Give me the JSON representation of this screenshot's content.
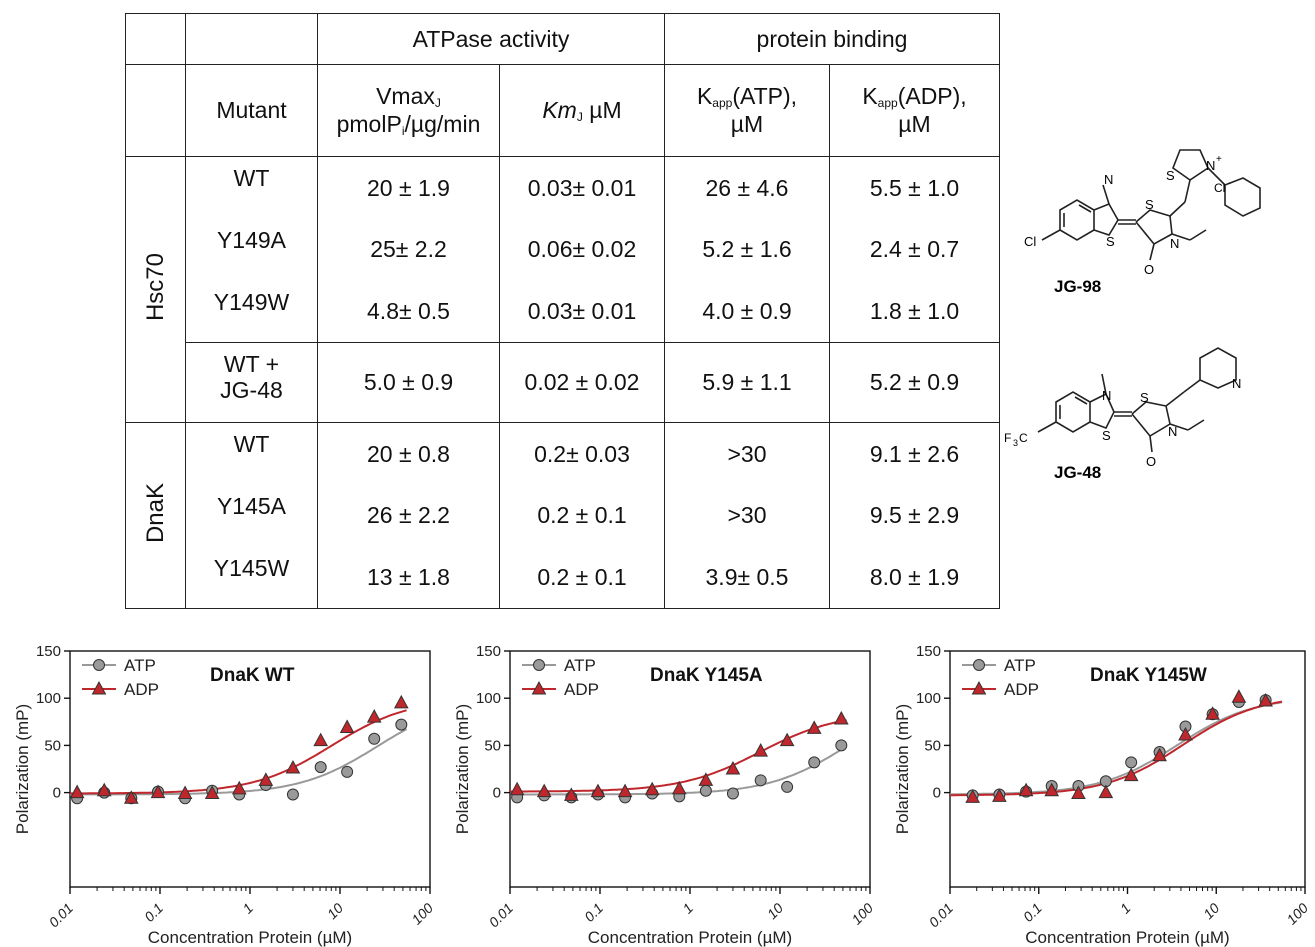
{
  "table": {
    "group_headers": [
      "ATPase activity",
      "protein binding"
    ],
    "col_headers": {
      "mutant": "Mutant",
      "vmax": [
        "Vmax",
        "J",
        "pmolP",
        "i",
        "/µg/min"
      ],
      "km": [
        "Km",
        "J",
        " µM"
      ],
      "kapp_atp": [
        "K",
        "app",
        "(ATP),",
        "µM"
      ],
      "kapp_adp": [
        "K",
        "app",
        "(ADP),",
        "µM"
      ]
    },
    "groups": [
      {
        "name": "Hsc70",
        "rows": [
          {
            "mutant": "WT",
            "vmax": "20 ± 1.9",
            "km": "0.03± 0.01",
            "kapp_atp": "26 ± 4.6",
            "kapp_adp": "5.5 ± 1.0"
          },
          {
            "mutant": "Y149A",
            "vmax": "25± 2.2",
            "km": "0.06± 0.02",
            "kapp_atp": "5.2 ± 1.6",
            "kapp_adp": "2.4 ± 0.7"
          },
          {
            "mutant": "Y149W",
            "vmax": "4.8± 0.5",
            "km": "0.03± 0.01",
            "kapp_atp": "4.0 ± 0.9",
            "kapp_adp": "1.8 ± 1.0"
          },
          {
            "mutant": "WT +\nJG-48",
            "vmax": "5.0 ± 0.9",
            "km": "0.02 ± 0.02",
            "kapp_atp": "5.9 ± 1.1",
            "kapp_adp": "5.2 ± 0.9"
          }
        ]
      },
      {
        "name": "DnaK",
        "rows": [
          {
            "mutant": "WT",
            "vmax": "20 ± 0.8",
            "km": "0.2± 0.03",
            "kapp_atp": ">30",
            "kapp_adp": "9.1 ± 2.6"
          },
          {
            "mutant": "Y145A",
            "vmax": "26 ± 2.2",
            "km": "0.2 ± 0.1",
            "kapp_atp": ">30",
            "kapp_adp": "9.5 ± 2.9"
          },
          {
            "mutant": "Y145W",
            "vmax": "13 ± 1.8",
            "km": "0.2 ± 0.1",
            "kapp_atp": "3.9± 0.5",
            "kapp_adp": "8.0 ± 1.9"
          }
        ]
      }
    ]
  },
  "structures": {
    "jg98": {
      "label": "JG-98",
      "atoms": [
        "Cl",
        "N",
        "S",
        "S",
        "N",
        "O",
        "S",
        "N",
        "+",
        "Cl",
        "-"
      ]
    },
    "jg48": {
      "label": "JG-48",
      "atoms": [
        "F",
        "3",
        "C",
        "N",
        "S",
        "S",
        "N",
        "O",
        "N"
      ]
    }
  },
  "chart_data": [
    {
      "type": "scatter",
      "title": "DnaK WT",
      "xlabel": "Concentration Protein (µM)",
      "ylabel": "Polarization (mP)",
      "xscale": "log",
      "xlim": [
        0.01,
        100
      ],
      "ylim": [
        -100,
        150
      ],
      "xticks": [
        "0.01",
        "0.1",
        "1",
        "10",
        "100"
      ],
      "yticks": [
        "0",
        "50",
        "100",
        "150"
      ],
      "legend_position": "top-left",
      "colors": {
        "ATP": "#999999",
        "ADP": "#c0272d"
      },
      "series": [
        {
          "name": "ATP",
          "marker": "circle",
          "x": [
            0.012,
            0.024,
            0.048,
            0.095,
            0.19,
            0.38,
            0.76,
            1.5,
            3.0,
            6.1,
            12,
            24,
            48
          ],
          "y": [
            -6,
            0,
            -6,
            1,
            -6,
            2,
            -2,
            8,
            -2,
            27,
            22,
            57,
            72
          ]
        },
        {
          "name": "ADP",
          "marker": "triangle",
          "x": [
            0.012,
            0.024,
            0.048,
            0.095,
            0.19,
            0.38,
            0.76,
            1.5,
            3.0,
            6.1,
            12,
            24,
            48
          ],
          "y": [
            0,
            2,
            -6,
            0,
            -1,
            -1,
            4,
            13,
            26,
            55,
            69,
            80,
            95
          ]
        }
      ],
      "fit": {
        "ATP": {
          "bottom": -2,
          "top": 100,
          "kd": 26
        },
        "ADP": {
          "bottom": -1,
          "top": 100,
          "kd": 8
        }
      }
    },
    {
      "type": "scatter",
      "title": "DnaK Y145A",
      "xlabel": "Concentration Protein (µM)",
      "ylabel": "Polarization (mP)",
      "xscale": "log",
      "xlim": [
        0.01,
        100
      ],
      "ylim": [
        -100,
        150
      ],
      "xticks": [
        "0.01",
        "0.1",
        "1",
        "10",
        "100"
      ],
      "yticks": [
        "0",
        "50",
        "100",
        "150"
      ],
      "legend_position": "top-left",
      "colors": {
        "ATP": "#999999",
        "ADP": "#c0272d"
      },
      "series": [
        {
          "name": "ATP",
          "marker": "circle",
          "x": [
            0.012,
            0.024,
            0.048,
            0.095,
            0.19,
            0.38,
            0.76,
            1.5,
            3.0,
            6.1,
            12,
            24,
            48
          ],
          "y": [
            -5,
            -3,
            -5,
            -2,
            -5,
            -1,
            -4,
            2,
            -1,
            13,
            6,
            32,
            50
          ]
        },
        {
          "name": "ADP",
          "marker": "triangle",
          "x": [
            0.012,
            0.024,
            0.048,
            0.095,
            0.19,
            0.38,
            0.76,
            1.5,
            3.0,
            6.1,
            12,
            24,
            48
          ],
          "y": [
            3,
            1,
            -3,
            1,
            1,
            3,
            4,
            13,
            25,
            44,
            55,
            68,
            78
          ]
        }
      ],
      "fit": {
        "ATP": {
          "bottom": -2,
          "top": 100,
          "kd": 55
        },
        "ADP": {
          "bottom": 1,
          "top": 85,
          "kd": 6
        }
      }
    },
    {
      "type": "scatter",
      "title": "DnaK Y145W",
      "xlabel": "Concentration Protein (µM)",
      "ylabel": "Polarization (mP)",
      "xscale": "log",
      "xlim": [
        0.01,
        100
      ],
      "ylim": [
        -100,
        150
      ],
      "xticks": [
        "0.01",
        "0.1",
        "1",
        "10",
        "100"
      ],
      "yticks": [
        "0",
        "50",
        "100",
        "150"
      ],
      "legend_position": "top-left",
      "colors": {
        "ATP": "#999999",
        "ADP": "#c0272d"
      },
      "series": [
        {
          "name": "ATP",
          "marker": "circle",
          "x": [
            0.018,
            0.036,
            0.072,
            0.14,
            0.28,
            0.57,
            1.1,
            2.3,
            4.5,
            9.1,
            18,
            36
          ],
          "y": [
            -3,
            -2,
            1,
            7,
            7,
            12,
            32,
            43,
            70,
            83,
            96,
            98
          ]
        },
        {
          "name": "ADP",
          "marker": "triangle",
          "x": [
            0.018,
            0.036,
            0.072,
            0.14,
            0.28,
            0.57,
            1.1,
            2.3,
            4.5,
            9.1,
            18,
            36
          ],
          "y": [
            -5,
            -4,
            2,
            2,
            -1,
            0,
            18,
            39,
            61,
            83,
            101,
            97
          ]
        }
      ],
      "fit": {
        "ATP": {
          "bottom": -2,
          "top": 102,
          "kd": 3.6
        },
        "ADP": {
          "bottom": -3,
          "top": 104,
          "kd": 4.2
        }
      }
    }
  ]
}
